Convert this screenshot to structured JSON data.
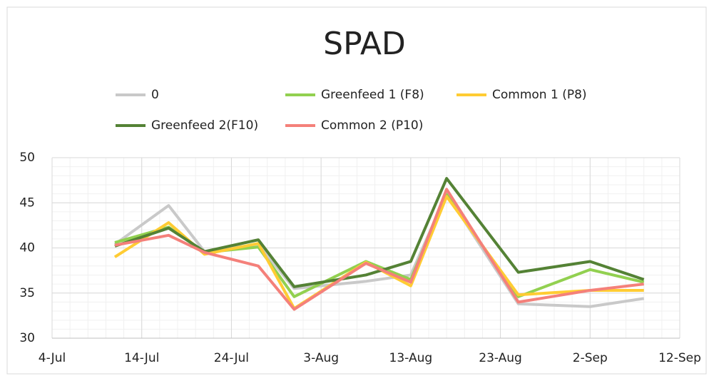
{
  "chart_data": {
    "type": "line",
    "title": "SPAD",
    "x": [
      "11-Jul",
      "17-Jul",
      "21-Jul",
      "27-Jul",
      "31-Jul",
      "8-Aug",
      "13-Aug",
      "17-Aug",
      "25-Aug",
      "2-Sep",
      "8-Sep"
    ],
    "series": [
      {
        "name": "0",
        "color": "#c9c9c9",
        "values": [
          40.4,
          44.7,
          39.6,
          40.4,
          35.5,
          36.3,
          37.0,
          46.0,
          33.8,
          33.5,
          34.4
        ]
      },
      {
        "name": "Greenfeed 1 (F8)",
        "color": "#92d050",
        "values": [
          40.6,
          42.3,
          39.5,
          40.1,
          34.6,
          38.5,
          36.5,
          45.9,
          34.6,
          37.6,
          36.2
        ]
      },
      {
        "name": "Common 1 (P8)",
        "color": "#ffcc33",
        "values": [
          39.0,
          42.8,
          39.3,
          40.5,
          33.3,
          38.4,
          35.8,
          45.7,
          34.8,
          35.3,
          35.3
        ]
      },
      {
        "name": "Greenfeed 2(F10)",
        "color": "#548235",
        "values": [
          40.2,
          42.2,
          39.6,
          40.9,
          35.7,
          37.0,
          38.5,
          47.7,
          37.3,
          38.5,
          36.5
        ]
      },
      {
        "name": "Common 2 (P10)",
        "color": "#f4807a",
        "values": [
          40.3,
          41.4,
          39.5,
          38.0,
          33.2,
          38.3,
          36.2,
          46.5,
          34.0,
          35.3,
          36.0
        ]
      }
    ],
    "xlim": [
      "4-Jul",
      "12-Sep"
    ],
    "xticks": [
      "4-Jul",
      "14-Jul",
      "24-Jul",
      "3-Aug",
      "13-Aug",
      "23-Aug",
      "2-Sep",
      "12-Sep"
    ],
    "ylim": [
      30,
      50
    ],
    "yticks": [
      30,
      35,
      40,
      45,
      50
    ],
    "grid": true
  }
}
